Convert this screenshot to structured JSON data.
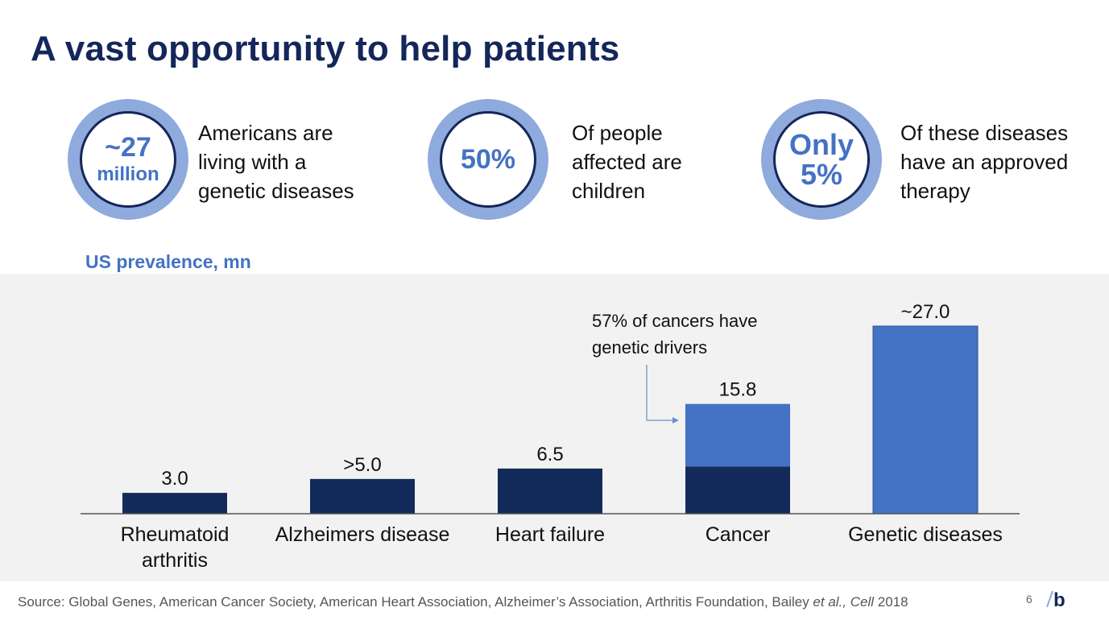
{
  "title": "A vast opportunity to help patients",
  "stats": [
    {
      "value_line1": "~27",
      "value_line2": "million",
      "description": [
        "Americans are",
        "living with a",
        "genetic diseases"
      ]
    },
    {
      "value_line1": "50%",
      "value_line2": "",
      "description": [
        "Of people",
        "affected are",
        "children"
      ]
    },
    {
      "value_line1": "Only",
      "value_line2": "5%",
      "description": [
        "Of these diseases",
        "have an approved",
        "therapy"
      ]
    }
  ],
  "chart_data": {
    "type": "bar",
    "title": "US prevalence, mn",
    "categories": [
      [
        "Rheumatoid",
        "arthritis"
      ],
      [
        "Alzheimers disease"
      ],
      [
        "Heart failure"
      ],
      [
        "Cancer"
      ],
      [
        "Genetic diseases"
      ]
    ],
    "values": [
      3.0,
      5.0,
      6.5,
      15.8,
      27.0
    ],
    "data_labels": [
      "3.0",
      ">5.0",
      "6.5",
      "15.8",
      "~27.0"
    ],
    "cancer_genetic_share": 0.57,
    "annotation": [
      "57% of cancers have",
      "genetic drivers"
    ],
    "ylim": [
      0,
      27.0
    ],
    "grid": false,
    "colors": {
      "dark": "#132b5a",
      "light": "#4472c4",
      "axis": "#555555"
    }
  },
  "footer": {
    "source_prefix": "Source: Global Genes, American Cancer Society, American Heart Association, Alzheimer’s Association, Arthritis Foundation, Bailey ",
    "source_etal": "et al.,",
    "source_journal": "Cell",
    "source_year": " 2018",
    "page_number": "6",
    "logo_letter": "b"
  },
  "colors": {
    "title": "#14265a",
    "accent": "#4472c4",
    "ring": "#8faadc"
  }
}
